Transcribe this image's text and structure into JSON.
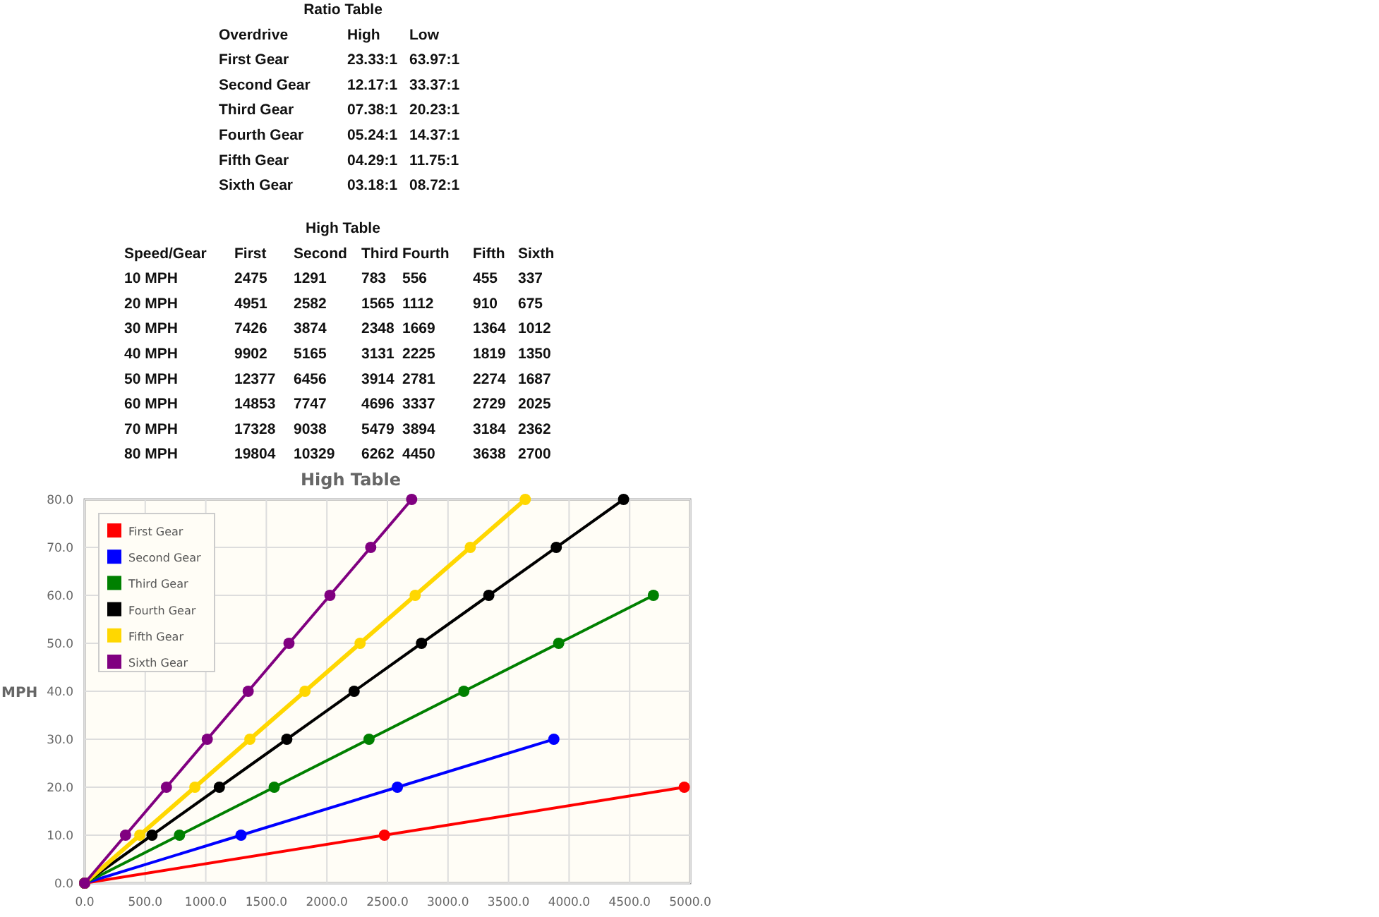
{
  "chart_data": [
    {
      "type": "other",
      "title": "Ratio Table",
      "categories": [
        "Overdrive",
        "High",
        "Low"
      ],
      "y_categories": [
        "First Gear",
        "Second Gear",
        "Third Gear",
        "Fourth Gear",
        "Fifth Gear",
        "Sixth Gear"
      ],
      "cell_labels": [
        [
          "23.33:1",
          "63.97:1"
        ],
        [
          "12.17:1",
          "33.37:1"
        ],
        [
          "07.38:1",
          "20.23:1"
        ],
        [
          "05.24:1",
          "14.37:1"
        ],
        [
          "04.29:1",
          "11.75:1"
        ],
        [
          "03.18:1",
          "08.72:1"
        ]
      ]
    },
    {
      "type": "heatmap",
      "title": "High Table",
      "ylabel": "Speed/Gear",
      "data_labels": true,
      "categories": [
        "First",
        "Second",
        "Third",
        "Fourth",
        "Fifth",
        "Sixth"
      ],
      "y_categories": [
        "10 MPH",
        "20 MPH",
        "30 MPH",
        "40 MPH",
        "50 MPH",
        "60 MPH",
        "70 MPH",
        "80 MPH"
      ],
      "cells": [
        [
          2475,
          1291,
          783,
          556,
          455,
          337
        ],
        [
          4951,
          2582,
          1565,
          1112,
          910,
          675
        ],
        [
          7426,
          3874,
          2348,
          1669,
          1364,
          1012
        ],
        [
          9902,
          5165,
          3131,
          2225,
          1819,
          1350
        ],
        [
          12377,
          6456,
          3914,
          2781,
          2274,
          1687
        ],
        [
          14853,
          7747,
          4696,
          3337,
          2729,
          2025
        ],
        [
          17328,
          9038,
          5479,
          3894,
          3184,
          2362
        ],
        [
          19804,
          10329,
          6262,
          4450,
          3638,
          2700
        ]
      ]
    },
    {
      "type": "line",
      "title": "High Table",
      "ylabel": "MPH",
      "marker": "circle",
      "grid": true,
      "legend": "top left",
      "xlim": [
        0,
        5000
      ],
      "ylim": [
        0,
        80
      ],
      "xticks": [
        {
          "value": 0,
          "label": "0.0"
        },
        {
          "value": 500,
          "label": "500.0"
        },
        {
          "value": 1000,
          "label": "1000.0"
        },
        {
          "value": 1500,
          "label": "1500.0"
        },
        {
          "value": 2000,
          "label": "2000.0"
        },
        {
          "value": 2500,
          "label": "2500.0"
        },
        {
          "value": 3000,
          "label": "3000.0"
        },
        {
          "value": 3500,
          "label": "3500.0"
        },
        {
          "value": 4000,
          "label": "4000.0"
        },
        {
          "value": 4500,
          "label": "4500.0"
        },
        {
          "value": 5000,
          "label": "5000.0"
        }
      ],
      "yticks": [
        {
          "value": 0,
          "label": "0.0"
        },
        {
          "value": 10,
          "label": "10.0"
        },
        {
          "value": 20,
          "label": "20.0"
        },
        {
          "value": 30,
          "label": "30.0"
        },
        {
          "value": 40,
          "label": "40.0"
        },
        {
          "value": 50,
          "label": "50.0"
        },
        {
          "value": 60,
          "label": "60.0"
        },
        {
          "value": 70,
          "label": "70.0"
        },
        {
          "value": 80,
          "label": "80.0"
        }
      ],
      "series": [
        {
          "name": "First Gear",
          "color": "#ff0000",
          "x": [
            0,
            2475,
            4951
          ],
          "values": [
            0,
            10,
            20
          ]
        },
        {
          "name": "Second Gear",
          "color": "#0000ff",
          "x": [
            0,
            1291,
            2582,
            3874
          ],
          "values": [
            0,
            10,
            20,
            30
          ]
        },
        {
          "name": "Third Gear",
          "color": "#008000",
          "x": [
            0,
            783,
            1565,
            2348,
            3131,
            3914,
            4696
          ],
          "values": [
            0,
            10,
            20,
            30,
            40,
            50,
            60
          ]
        },
        {
          "name": "Fourth Gear",
          "color": "#000000",
          "x": [
            0,
            556,
            1112,
            1669,
            2225,
            2781,
            3337,
            3894,
            4450
          ],
          "values": [
            0,
            10,
            20,
            30,
            40,
            50,
            60,
            70,
            80
          ]
        },
        {
          "name": "Fifth Gear",
          "color": "#ffd700",
          "x": [
            0,
            455,
            910,
            1364,
            1819,
            2274,
            2729,
            3184,
            3638
          ],
          "values": [
            0,
            10,
            20,
            30,
            40,
            50,
            60,
            70,
            80
          ]
        },
        {
          "name": "Sixth Gear",
          "color": "#800080",
          "x": [
            0,
            337,
            675,
            1012,
            1350,
            1687,
            2025,
            2362,
            2700
          ],
          "values": [
            0,
            10,
            20,
            30,
            40,
            50,
            60,
            70,
            80
          ]
        }
      ]
    }
  ]
}
